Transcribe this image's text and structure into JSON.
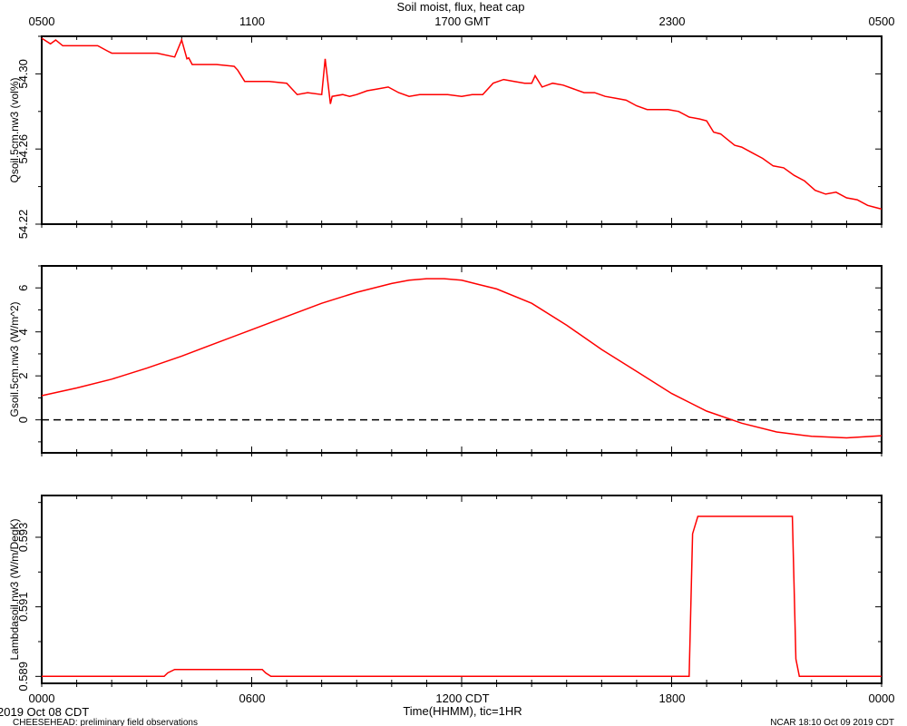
{
  "header": {
    "title": "Soil moist, flux, heat cap",
    "top_axis_ticks": [
      "0500",
      "1100",
      "1700 GMT",
      "2300",
      "0500"
    ]
  },
  "footer": {
    "start_date": "2019 Oct 08 CDT",
    "project": "CHEESEHEAD: preliminary field observations",
    "stamp": "NCAR 18:10 Oct 09 2019 CDT",
    "xlabel": "Time(HHMM), tic=1HR",
    "bottom_axis_ticks": [
      "0000",
      "0600",
      "1200 CDT",
      "1800",
      "0000"
    ]
  },
  "colors": {
    "series": "#ff0000",
    "axes": "#000000",
    "zero_line": "#000000"
  },
  "chart_data": [
    {
      "type": "line",
      "ylabel": "Qsoil.5cm.nw3 (vol%)",
      "ylim": [
        54.22,
        54.32
      ],
      "yticks": [
        "54.22",
        "54.26",
        "54.30"
      ],
      "x_hours": [
        0,
        0.25,
        0.4,
        0.6,
        1.0,
        1.6,
        1.9,
        2.0,
        2.3,
        2.8,
        3.3,
        3.8,
        4.0,
        4.15,
        4.3,
        4.5,
        5.0,
        5.5,
        5.6,
        5.8,
        6.0,
        6.5,
        7.0,
        7.3,
        7.6,
        8.0,
        8.3,
        8.6,
        8.8,
        9.0,
        9.3,
        9.6,
        9.9,
        10.2,
        10.5,
        10.8,
        11.0,
        11.3,
        11.6,
        12.0,
        12.3,
        12.6,
        12.9,
        13.2,
        13.5,
        13.8,
        14.0,
        14.3,
        14.6,
        14.9,
        15.2,
        15.5,
        15.8,
        16.1,
        16.4,
        16.7,
        17.0,
        17.3,
        17.6,
        17.9,
        18.2,
        18.5,
        18.8,
        19.0,
        19.2,
        19.4,
        19.6,
        19.8,
        20.0,
        20.3,
        20.6,
        20.9,
        21.2,
        21.5,
        21.8,
        22.1,
        22.4,
        22.7,
        23.0,
        23.3,
        23.6,
        23.8,
        24.0
      ],
      "values": [
        54.319,
        54.316,
        54.318,
        54.315,
        54.315,
        54.315,
        54.312,
        54.311,
        54.311,
        54.311,
        54.311,
        54.309,
        54.318,
        54.308,
        54.305,
        54.305,
        54.305,
        54.304,
        54.302,
        54.296,
        54.296,
        54.296,
        54.295,
        54.289,
        54.29,
        54.289,
        54.288,
        54.289,
        54.288,
        54.289,
        54.291,
        54.292,
        54.293,
        54.29,
        54.288,
        54.289,
        54.289,
        54.289,
        54.289,
        54.288,
        54.289,
        54.289,
        54.295,
        54.297,
        54.296,
        54.295,
        54.295,
        54.293,
        54.295,
        54.294,
        54.292,
        54.29,
        54.29,
        54.288,
        54.287,
        54.286,
        54.283,
        54.281,
        54.281,
        54.281,
        54.28,
        54.277,
        54.276,
        54.275,
        54.269,
        54.268,
        54.265,
        54.262,
        54.261,
        54.258,
        54.255,
        54.251,
        54.25,
        54.246,
        54.243,
        54.238,
        54.236,
        54.237,
        54.234,
        54.233,
        54.23,
        54.229,
        54.228
      ],
      "spike_overrides": {
        "4.2": 54.3085,
        "8.1": 54.308,
        "8.25": 54.284,
        "14.1": 54.299
      }
    },
    {
      "type": "line",
      "ylabel": "Gsoil.5cm.nw3 (W/m^2)",
      "ylim": [
        -1.5,
        7
      ],
      "yticks": [
        "0",
        "2",
        "4",
        "6"
      ],
      "zero_line": true,
      "x_hours": [
        0,
        1,
        2,
        3,
        4,
        5,
        6,
        7,
        8,
        9,
        10,
        10.5,
        11,
        11.5,
        12,
        12.5,
        13,
        14,
        15,
        16,
        17,
        18,
        19,
        20,
        21,
        22,
        23,
        24
      ],
      "values": [
        1.1,
        1.45,
        1.85,
        2.35,
        2.9,
        3.5,
        4.1,
        4.7,
        5.3,
        5.8,
        6.2,
        6.35,
        6.42,
        6.42,
        6.35,
        6.15,
        5.95,
        5.3,
        4.3,
        3.2,
        2.2,
        1.2,
        0.4,
        -0.15,
        -0.55,
        -0.75,
        -0.82,
        -0.72
      ]
    },
    {
      "type": "line",
      "ylabel": "Lambdasoil.nw3 (W/m/DegK)",
      "ylim": [
        0.5888,
        0.5942
      ],
      "yticks": [
        "0.589",
        "0.591",
        "0.593"
      ],
      "x_hours": [
        0,
        3.5,
        3.6,
        3.8,
        6.3,
        6.4,
        6.55,
        18.5,
        18.6,
        18.75,
        21.45,
        21.55,
        21.65,
        24
      ],
      "values": [
        0.589,
        0.589,
        0.5891,
        0.5892,
        0.5892,
        0.5891,
        0.589,
        0.589,
        0.5931,
        0.5936,
        0.5936,
        0.5895,
        0.589,
        0.589
      ]
    }
  ]
}
